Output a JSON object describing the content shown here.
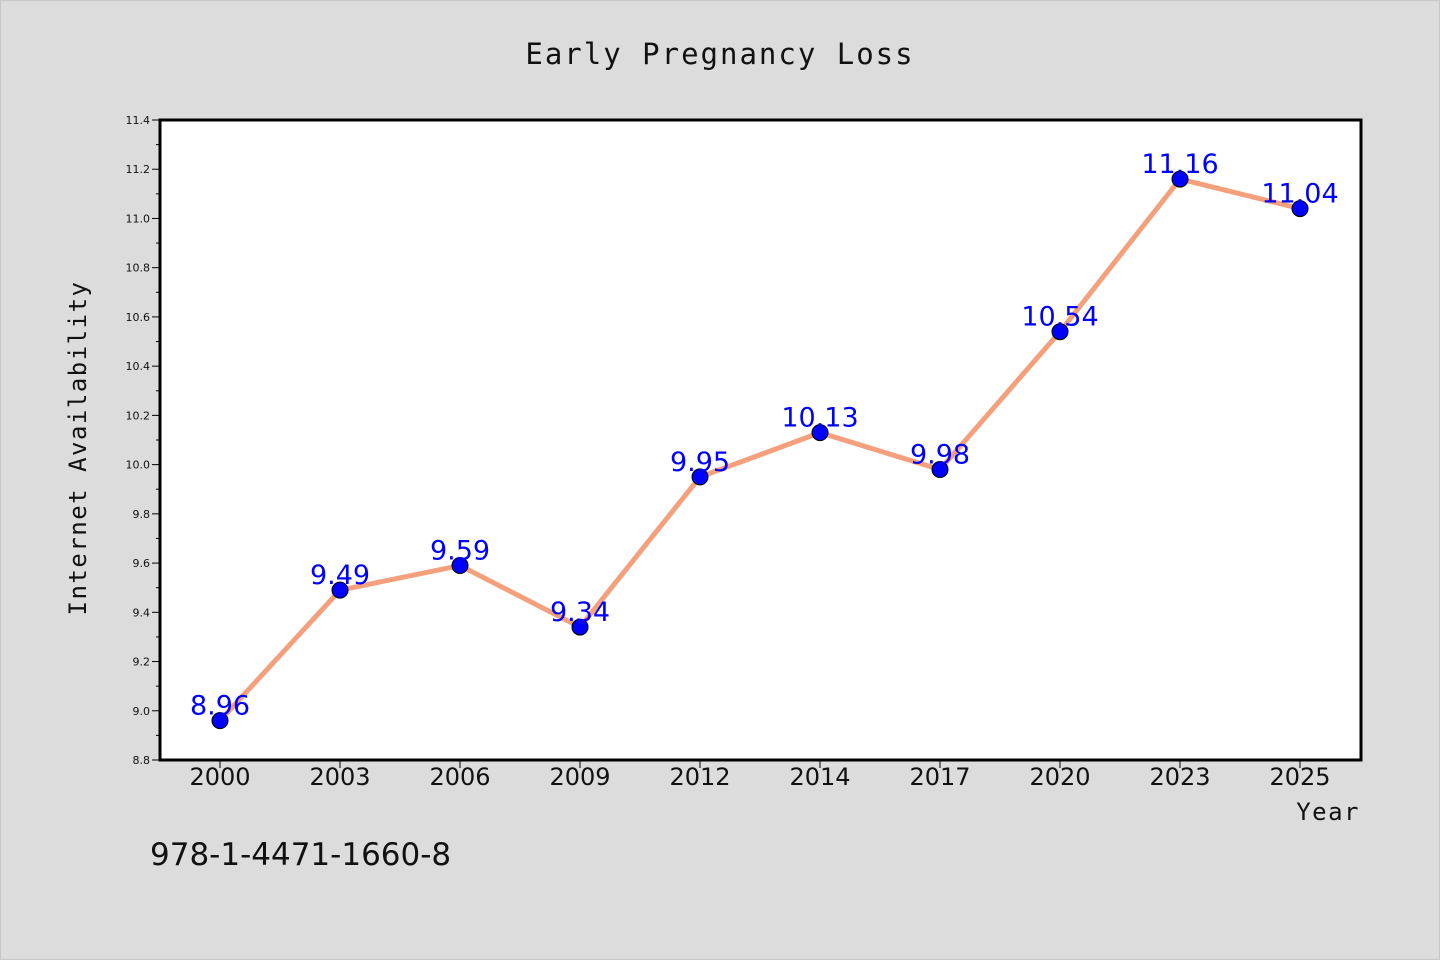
{
  "chart_data": {
    "type": "line",
    "title": "Early Pregnancy Loss",
    "xlabel": "Year",
    "ylabel": "Internet Availability",
    "categories": [
      "2000",
      "2003",
      "2006",
      "2009",
      "2012",
      "2014",
      "2017",
      "2020",
      "2023",
      "2025"
    ],
    "series": [
      {
        "values": [
          8.96,
          9.49,
          9.59,
          9.34,
          9.95,
          10.13,
          9.98,
          10.54,
          11.16,
          11.04
        ],
        "data_labels": [
          "8.96",
          "9.49",
          "9.59",
          "9.34",
          "9.95",
          "10.13",
          "9.98",
          "10.54",
          "11.16",
          "11.04"
        ],
        "line_color": "#f4a07c",
        "marker_color": "#0000ff"
      }
    ],
    "ylim": [
      8.8,
      11.4
    ],
    "yticks": [
      "8.8",
      "9.0",
      "9.2",
      "9.4",
      "9.6",
      "9.8",
      "10.0",
      "10.2",
      "10.4",
      "10.6",
      "10.8",
      "11.0",
      "11.2",
      "11.4"
    ],
    "grid": false,
    "background_color": "#dcdcdc",
    "plot_background": "#ffffff"
  },
  "footer": {
    "text": "978-1-4471-1660-8"
  }
}
